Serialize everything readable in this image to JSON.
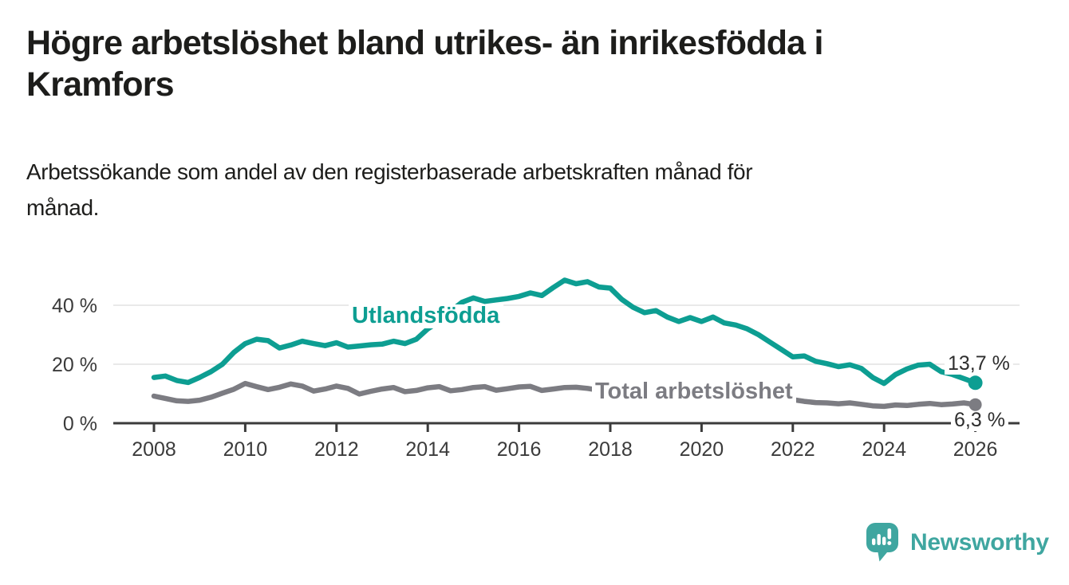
{
  "title": {
    "line1": "Högre arbetslöshet bland utrikes- än inrikesfödda i",
    "line2": "Kramfors"
  },
  "subtitle": {
    "line1": "Arbetssökande som andel av den registerbaserade arbetskraften månad för",
    "line2": "månad."
  },
  "branding": {
    "logo_text": "Newsworthy",
    "logo_color": "#3FA6A0"
  },
  "colors": {
    "foreign_born_series": "#0D9E92",
    "total_series": "#7C7C82",
    "axis": "#3B3B3B",
    "grid": "#E2E2E2",
    "value_label": "#2E2E2E",
    "background": "#FFFFFF"
  },
  "chart_data": {
    "type": "line",
    "title": "Högre arbetslöshet bland utrikes- än inrikesfödda i Kramfors",
    "subtitle": "Arbetssökande som andel av den registerbaserade arbetskraften månad för månad.",
    "xlabel": "",
    "ylabel": "",
    "unit": "%",
    "grid": "horizontal",
    "legend_position": "inline-labels",
    "xlim": [
      2007.1,
      2027.1
    ],
    "ylim": [
      0,
      52
    ],
    "x_ticks": [
      2008,
      2010,
      2012,
      2014,
      2016,
      2018,
      2020,
      2022,
      2024,
      2026
    ],
    "y_ticks": [
      0,
      20,
      40
    ],
    "y_tick_labels": [
      "0 %",
      "20 %",
      "40 %"
    ],
    "x_start": 2008.0,
    "x_step_years": 0.25,
    "series": [
      {
        "name": "Utlandsfödda",
        "color": "#0D9E92",
        "end_label": "13,7 %",
        "end_value": 13.7,
        "values": [
          15.5,
          16.0,
          14.5,
          13.8,
          15.5,
          17.5,
          20.0,
          24.0,
          27.0,
          28.5,
          28.0,
          25.5,
          26.5,
          27.8,
          27.0,
          26.3,
          27.3,
          25.8,
          26.2,
          26.6,
          26.8,
          27.8,
          27.0,
          28.5,
          32.0,
          34.5,
          38.0,
          41.0,
          42.5,
          41.3,
          41.8,
          42.3,
          43.0,
          44.2,
          43.3,
          46.0,
          48.5,
          47.3,
          48.0,
          46.2,
          45.8,
          42.0,
          39.3,
          37.5,
          38.2,
          36.0,
          34.5,
          35.8,
          34.5,
          36.0,
          34.0,
          33.3,
          32.0,
          30.0,
          27.5,
          25.0,
          22.5,
          22.8,
          21.0,
          20.2,
          19.2,
          19.8,
          18.6,
          15.5,
          13.5,
          16.5,
          18.4,
          19.7,
          20.0,
          17.5,
          16.5,
          15.1,
          13.7
        ]
      },
      {
        "name": "Total arbetslöshet",
        "color": "#7C7C82",
        "end_label": "6,3 %",
        "end_value": 6.3,
        "values": [
          9.2,
          8.4,
          7.6,
          7.4,
          7.8,
          8.8,
          10.2,
          11.5,
          13.5,
          12.4,
          11.4,
          12.2,
          13.3,
          12.6,
          10.9,
          11.6,
          12.6,
          11.8,
          9.9,
          10.8,
          11.6,
          12.1,
          10.7,
          11.1,
          12.0,
          12.4,
          11.0,
          11.4,
          12.1,
          12.4,
          11.2,
          11.7,
          12.3,
          12.5,
          11.1,
          11.6,
          12.1,
          12.2,
          11.8,
          11.2,
          11.6,
          11.4,
          10.3,
          10.6,
          10.9,
          10.6,
          9.8,
          10.2,
          10.6,
          11.0,
          10.4,
          10.0,
          9.9,
          9.5,
          8.8,
          8.4,
          8.0,
          7.4,
          7.0,
          6.9,
          6.6,
          6.9,
          6.4,
          5.9,
          5.7,
          6.2,
          6.0,
          6.4,
          6.7,
          6.3,
          6.5,
          6.9,
          6.3
        ]
      }
    ]
  }
}
